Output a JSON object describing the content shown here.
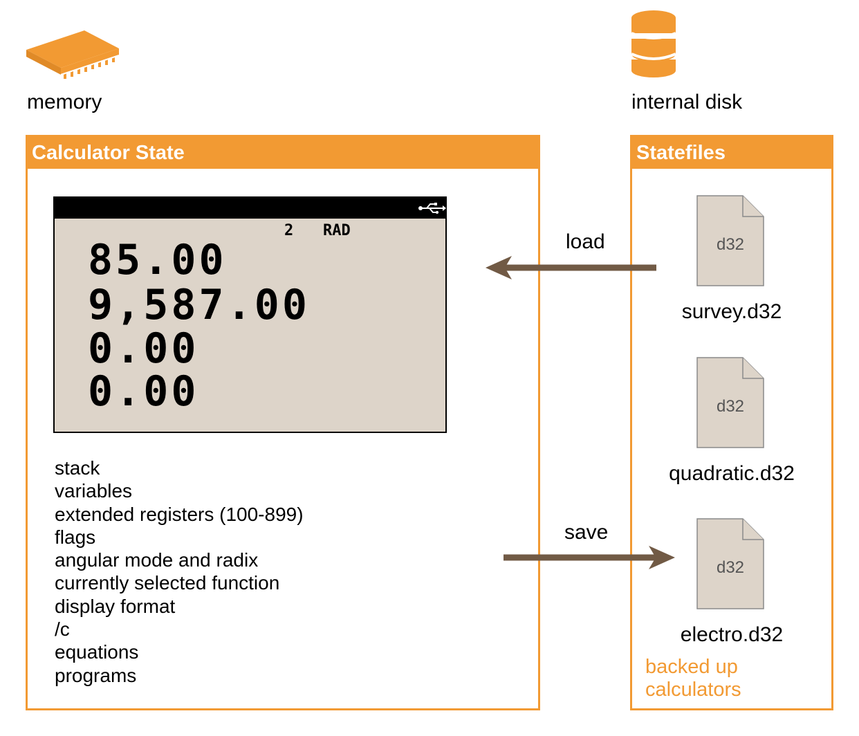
{
  "memory": {
    "icon": "memory-chip-icon",
    "label": "memory"
  },
  "disk": {
    "icon": "database-icon",
    "label": "internal disk"
  },
  "calculator_state": {
    "title": "Calculator State",
    "display": {
      "status_items": [
        "2",
        "RAD"
      ],
      "usb_icon": "usb-icon",
      "stack_rows": [
        "85.00",
        "9,587.00",
        "0.00",
        "0.00"
      ]
    },
    "contents": [
      "stack",
      "variables",
      "extended registers (100-899)",
      "flags",
      "angular mode and radix",
      "currently selected function",
      "display format",
      "/c",
      "equations",
      "programs"
    ]
  },
  "statefiles": {
    "title": "Statefiles",
    "files": [
      {
        "ext": "d32",
        "name": "survey.d32"
      },
      {
        "ext": "d32",
        "name": "quadratic.d32"
      },
      {
        "ext": "d32",
        "name": "electro.d32"
      }
    ],
    "note": [
      "backed up",
      "calculators"
    ]
  },
  "arrows": {
    "load": "load",
    "save": "save"
  },
  "colors": {
    "accent": "#f29a33",
    "arrow": "#715a45",
    "lcd": "#ddd4c9",
    "file": "#ddd4c9"
  }
}
